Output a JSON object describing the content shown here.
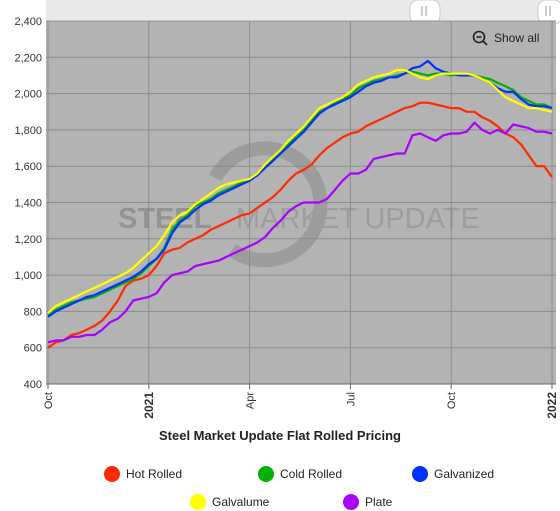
{
  "toolbar": {
    "show_all_label": "Show all"
  },
  "title": "Steel Market Update Flat Rolled Pricing",
  "watermark": {
    "brand_left": "STEEL",
    "brand_right": "MARKET UPDATE"
  },
  "chart_data": {
    "type": "line",
    "title": "Steel Market Update Flat Rolled Pricing",
    "xlabel": "",
    "ylabel": "",
    "ylim": [
      400,
      2400
    ],
    "yticks": [
      400,
      600,
      800,
      1000,
      1200,
      1400,
      1600,
      1800,
      2000,
      2200,
      2400
    ],
    "x_ticks": [
      {
        "label": "Oct",
        "week": 0,
        "bold": false
      },
      {
        "label": "2021",
        "week": 13,
        "bold": true
      },
      {
        "label": "Apr",
        "week": 26,
        "bold": false
      },
      {
        "label": "Jul",
        "week": 39,
        "bold": false
      },
      {
        "label": "Oct",
        "week": 52,
        "bold": false
      },
      {
        "label": "2022",
        "week": 65,
        "bold": true
      }
    ],
    "x_range": [
      0,
      65
    ],
    "grid": true,
    "legend_position": "bottom",
    "series": [
      {
        "name": "Hot Rolled",
        "color": "#ff2a00",
        "values": [
          600,
          630,
          640,
          670,
          680,
          700,
          720,
          750,
          800,
          860,
          940,
          970,
          980,
          1000,
          1050,
          1120,
          1140,
          1150,
          1180,
          1200,
          1220,
          1250,
          1270,
          1290,
          1310,
          1330,
          1340,
          1370,
          1400,
          1430,
          1470,
          1520,
          1560,
          1580,
          1610,
          1660,
          1700,
          1730,
          1760,
          1780,
          1790,
          1820,
          1840,
          1860,
          1880,
          1900,
          1920,
          1930,
          1950,
          1950,
          1940,
          1930,
          1920,
          1920,
          1900,
          1900,
          1870,
          1850,
          1820,
          1780,
          1760,
          1720,
          1660,
          1600,
          1600,
          1540
        ]
      },
      {
        "name": "Cold Rolled",
        "color": "#00b000",
        "values": [
          780,
          810,
          830,
          850,
          860,
          870,
          880,
          900,
          920,
          940,
          960,
          980,
          1010,
          1050,
          1090,
          1150,
          1250,
          1300,
          1330,
          1380,
          1400,
          1420,
          1450,
          1470,
          1490,
          1510,
          1530,
          1560,
          1600,
          1640,
          1680,
          1720,
          1760,
          1800,
          1850,
          1900,
          1920,
          1950,
          1970,
          1990,
          2030,
          2050,
          2070,
          2080,
          2090,
          2100,
          2110,
          2120,
          2110,
          2100,
          2110,
          2110,
          2100,
          2110,
          2100,
          2100,
          2090,
          2080,
          2060,
          2040,
          2020,
          1980,
          1960,
          1940,
          1940,
          1920
        ]
      },
      {
        "name": "Galvanized",
        "color": "#0033ff",
        "values": [
          770,
          800,
          820,
          840,
          860,
          880,
          890,
          910,
          930,
          950,
          970,
          990,
          1020,
          1060,
          1090,
          1140,
          1230,
          1290,
          1320,
          1360,
          1390,
          1410,
          1440,
          1460,
          1480,
          1500,
          1520,
          1550,
          1590,
          1630,
          1670,
          1710,
          1750,
          1790,
          1840,
          1890,
          1920,
          1940,
          1960,
          1980,
          2010,
          2040,
          2060,
          2070,
          2090,
          2090,
          2110,
          2140,
          2150,
          2180,
          2140,
          2120,
          2110,
          2100,
          2100,
          2100,
          2080,
          2060,
          2030,
          2010,
          2010,
          1970,
          1940,
          1930,
          1930,
          1920
        ]
      },
      {
        "name": "Galvalume",
        "color": "#ffff00",
        "values": [
          790,
          830,
          850,
          870,
          890,
          910,
          930,
          950,
          970,
          990,
          1010,
          1040,
          1080,
          1120,
          1160,
          1220,
          1290,
          1330,
          1350,
          1390,
          1420,
          1450,
          1480,
          1500,
          1510,
          1520,
          1530,
          1560,
          1610,
          1650,
          1690,
          1740,
          1780,
          1820,
          1870,
          1920,
          1940,
          1960,
          1980,
          2010,
          2050,
          2070,
          2090,
          2100,
          2110,
          2130,
          2130,
          2110,
          2090,
          2080,
          2100,
          2110,
          2110,
          2110,
          2110,
          2100,
          2080,
          2060,
          2020,
          1980,
          1960,
          1940,
          1920,
          1920,
          1910,
          1900
        ]
      },
      {
        "name": "Plate",
        "color": "#aa00ff",
        "values": [
          630,
          640,
          640,
          660,
          660,
          670,
          670,
          700,
          740,
          760,
          800,
          860,
          870,
          880,
          900,
          960,
          1000,
          1010,
          1020,
          1050,
          1060,
          1070,
          1080,
          1100,
          1120,
          1140,
          1160,
          1180,
          1210,
          1260,
          1300,
          1350,
          1380,
          1400,
          1400,
          1400,
          1420,
          1470,
          1520,
          1560,
          1560,
          1580,
          1640,
          1650,
          1660,
          1670,
          1670,
          1770,
          1780,
          1760,
          1740,
          1770,
          1780,
          1780,
          1790,
          1840,
          1800,
          1780,
          1800,
          1780,
          1830,
          1820,
          1810,
          1790,
          1790,
          1780
        ]
      }
    ]
  }
}
